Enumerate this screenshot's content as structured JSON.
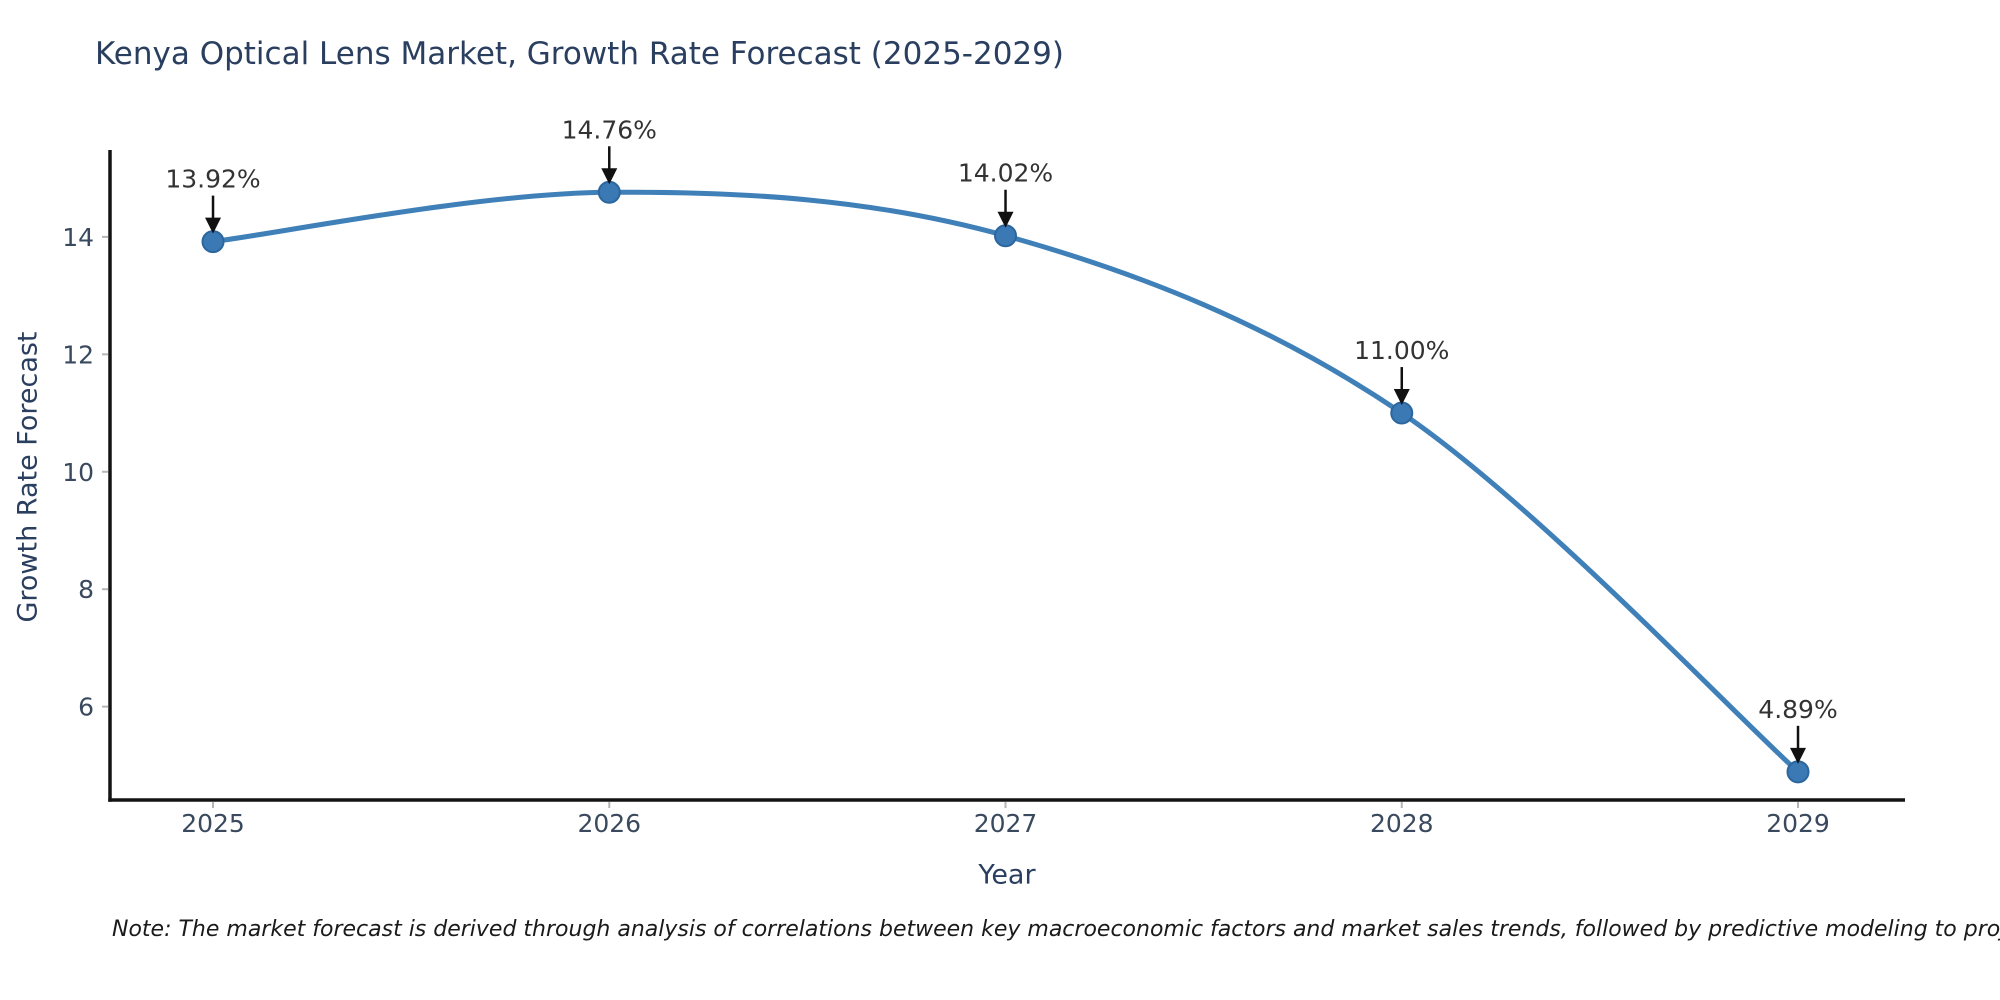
{
  "chart": {
    "title": "Kenya Optical Lens Market, Growth Rate Forecast (2025-2029)",
    "xlabel": "Year",
    "ylabel": "Growth Rate Forecast",
    "note": "Note: The market forecast is derived through analysis of correlations between key macroeconomic factors and market sales trends, followed by predictive modeling to project future sales."
  },
  "chart_data": {
    "type": "line",
    "title": "Kenya Optical Lens Market, Growth Rate Forecast (2025-2029)",
    "xlabel": "Year",
    "ylabel": "Growth Rate Forecast",
    "x": [
      2025,
      2026,
      2027,
      2028,
      2029
    ],
    "values": [
      13.92,
      14.76,
      14.02,
      11.0,
      4.89
    ],
    "point_labels": [
      "13.92%",
      "14.76%",
      "14.02%",
      "11.00%",
      "4.89%"
    ],
    "xticks": [
      2025,
      2026,
      2027,
      2028,
      2029
    ],
    "xtick_labels": [
      "2025",
      "2026",
      "2027",
      "2028",
      "2029"
    ],
    "yticks": [
      6,
      8,
      10,
      12,
      14
    ],
    "ytick_labels": [
      "6",
      "8",
      "10",
      "12",
      "14"
    ],
    "xlim": [
      2024.74,
      2029.27
    ],
    "ylim": [
      4.41,
      15.48
    ],
    "grid": false,
    "legend": "none",
    "line_shape": "spline",
    "annotation_style": "value-above-with-down-arrow",
    "colors": {
      "line": "#4080b8",
      "marker_fill": "#3b79b5",
      "marker_edge": "#2b669e",
      "spine": "#131313",
      "tick_mark": "#b5b5b5",
      "tick_label": "#3a4a5e",
      "title": "#2a3f5f",
      "annotation_text": "#333333",
      "arrow": "#111111",
      "background": "#ffffff"
    }
  }
}
